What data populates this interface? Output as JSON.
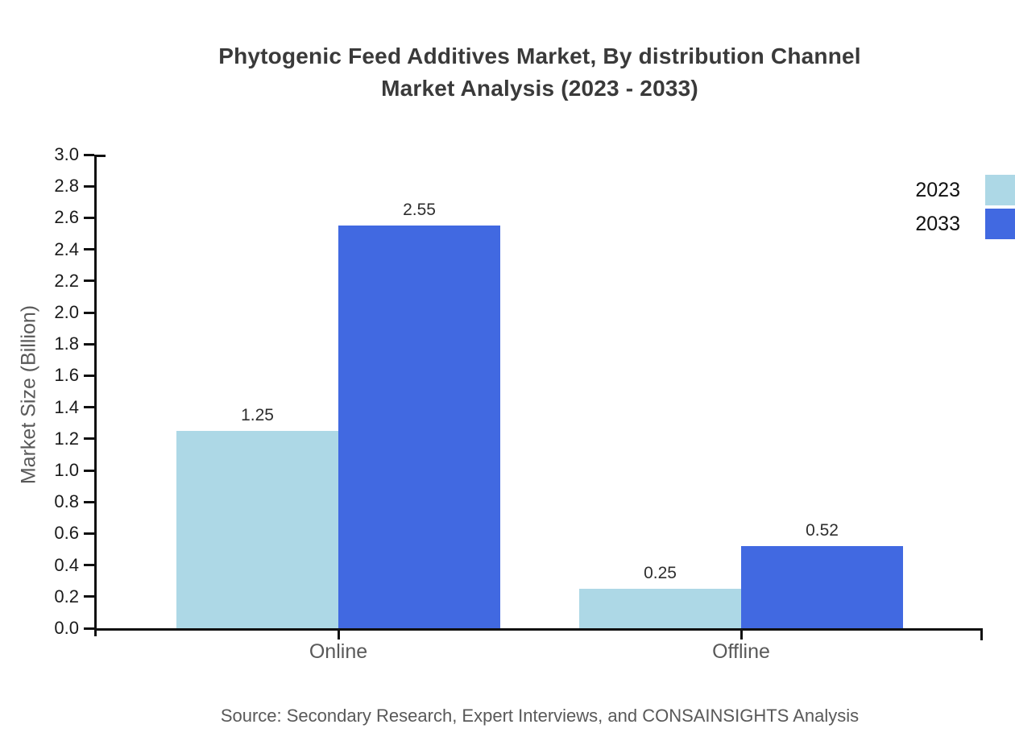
{
  "title": {
    "line1": "Phytogenic Feed Additives Market, By distribution Channel",
    "line2": "Market Analysis (2023 - 2033)"
  },
  "source": "Source: Secondary Research, Expert Interviews, and CONSAINSIGHTS Analysis",
  "chart_data": {
    "type": "bar",
    "title": "Phytogenic Feed Additives Market, By distribution Channel Market Analysis (2023 - 2033)",
    "categories": [
      "Online",
      "Offline"
    ],
    "series": [
      {
        "name": "2023",
        "color": "#ADD8E6",
        "values": [
          1.25,
          0.25
        ]
      },
      {
        "name": "2033",
        "color": "#4169E1",
        "values": [
          2.55,
          0.52
        ]
      }
    ],
    "value_labels": [
      [
        "1.25",
        "0.25"
      ],
      [
        "2.55",
        "0.52"
      ]
    ],
    "xlabel": "",
    "ylabel": "Market Size (Billion)",
    "ylim": [
      0.0,
      3.0
    ],
    "ytick_step": 0.2,
    "yticks": [
      "0.0",
      "0.2",
      "0.4",
      "0.6",
      "0.8",
      "1.0",
      "1.2",
      "1.4",
      "1.6",
      "1.8",
      "2.0",
      "2.2",
      "2.4",
      "2.6",
      "2.8",
      "3.0"
    ],
    "legend_position": "right",
    "grid": false,
    "background": "#ffffff",
    "axis_color": "#111111",
    "label_color": "#595959"
  }
}
